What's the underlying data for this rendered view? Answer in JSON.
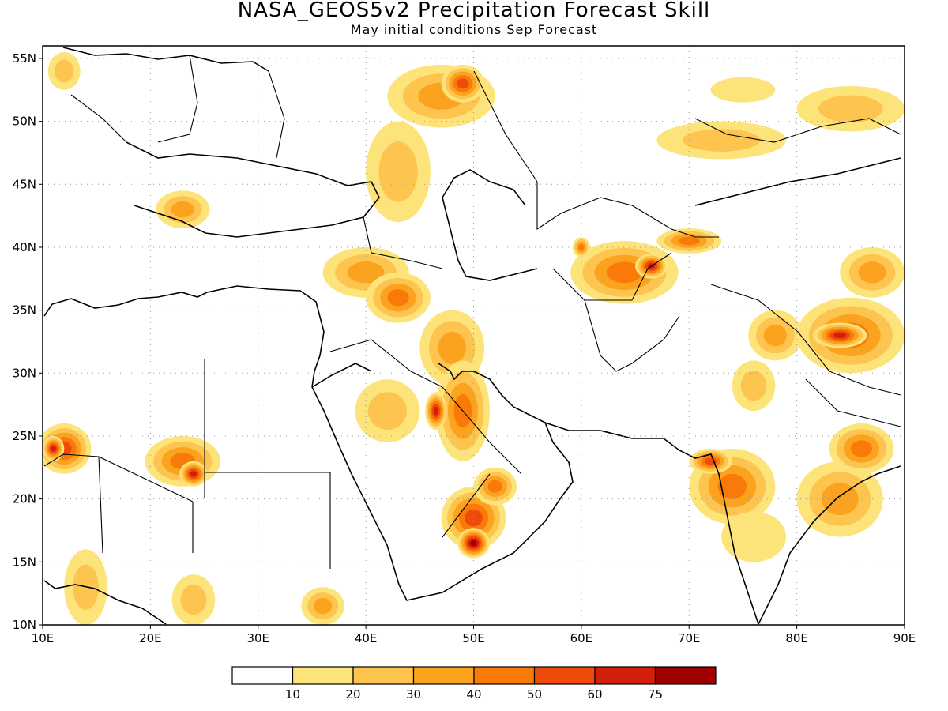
{
  "title": "NASA_GEOS5v2 Precipitation Forecast Skill",
  "subtitle": "May initial conditions  Sep Forecast",
  "map": {
    "lon_range": [
      10,
      90
    ],
    "lat_range": [
      10,
      56
    ],
    "lon_ticks": [
      "10E",
      "20E",
      "30E",
      "40E",
      "50E",
      "60E",
      "70E",
      "80E",
      "90E"
    ],
    "lat_ticks": [
      "55N",
      "50N",
      "45N",
      "40N",
      "35N",
      "30N",
      "25N",
      "20N",
      "15N",
      "10N"
    ],
    "grid": "dotted"
  },
  "colorbar": {
    "labels": [
      "10",
      "20",
      "30",
      "40",
      "50",
      "60",
      "75"
    ],
    "colors": [
      "#ffffff",
      "#fde47a",
      "#fdc450",
      "#fba21e",
      "#f97a08",
      "#ee4a0a",
      "#d21e0a",
      "#a00000"
    ]
  },
  "skill_regions": [
    {
      "lon": 47,
      "lat": 52,
      "rx": 5,
      "ry": 2.5,
      "level": 3
    },
    {
      "lon": 49,
      "lat": 53,
      "rx": 2,
      "ry": 1.5,
      "level": 5
    },
    {
      "lon": 43,
      "lat": 46,
      "rx": 3,
      "ry": 4,
      "level": 2
    },
    {
      "lon": 85,
      "lat": 51,
      "rx": 5,
      "ry": 1.8,
      "level": 2
    },
    {
      "lon": 73,
      "lat": 48.5,
      "rx": 6,
      "ry": 1.5,
      "level": 2
    },
    {
      "lon": 75,
      "lat": 52.5,
      "rx": 3,
      "ry": 1,
      "level": 1
    },
    {
      "lon": 64,
      "lat": 38,
      "rx": 5,
      "ry": 2.5,
      "level": 4
    },
    {
      "lon": 66.5,
      "lat": 38.5,
      "rx": 1.5,
      "ry": 1,
      "level": 6
    },
    {
      "lon": 70,
      "lat": 40.5,
      "rx": 3,
      "ry": 1,
      "level": 4
    },
    {
      "lon": 40,
      "lat": 38,
      "rx": 4,
      "ry": 2,
      "level": 3
    },
    {
      "lon": 43,
      "lat": 36,
      "rx": 3,
      "ry": 2,
      "level": 4
    },
    {
      "lon": 48,
      "lat": 32,
      "rx": 3,
      "ry": 3,
      "level": 3
    },
    {
      "lon": 49,
      "lat": 27,
      "rx": 2.5,
      "ry": 4,
      "level": 4
    },
    {
      "lon": 46.5,
      "lat": 27,
      "rx": 1,
      "ry": 1.5,
      "level": 6
    },
    {
      "lon": 42,
      "lat": 27,
      "rx": 3,
      "ry": 2.5,
      "level": 2
    },
    {
      "lon": 50,
      "lat": 18.5,
      "rx": 3,
      "ry": 2.5,
      "level": 5
    },
    {
      "lon": 50,
      "lat": 16.5,
      "rx": 1.5,
      "ry": 1.2,
      "level": 7
    },
    {
      "lon": 52,
      "lat": 21,
      "rx": 2,
      "ry": 1.5,
      "level": 4
    },
    {
      "lon": 12,
      "lat": 24,
      "rx": 2.5,
      "ry": 2,
      "level": 5
    },
    {
      "lon": 11,
      "lat": 24,
      "rx": 1,
      "ry": 1,
      "level": 6
    },
    {
      "lon": 23,
      "lat": 23,
      "rx": 3.5,
      "ry": 2,
      "level": 4
    },
    {
      "lon": 24,
      "lat": 22,
      "rx": 1.3,
      "ry": 1,
      "level": 6
    },
    {
      "lon": 74,
      "lat": 21,
      "rx": 4,
      "ry": 3,
      "level": 4
    },
    {
      "lon": 72,
      "lat": 23,
      "rx": 2,
      "ry": 1,
      "level": 5
    },
    {
      "lon": 76,
      "lat": 17,
      "rx": 3,
      "ry": 2,
      "level": 1
    },
    {
      "lon": 84,
      "lat": 20,
      "rx": 4,
      "ry": 3,
      "level": 3
    },
    {
      "lon": 86,
      "lat": 24,
      "rx": 3,
      "ry": 2,
      "level": 4
    },
    {
      "lon": 85,
      "lat": 33,
      "rx": 5,
      "ry": 3,
      "level": 4
    },
    {
      "lon": 84,
      "lat": 33,
      "rx": 2.5,
      "ry": 1,
      "level": 6
    },
    {
      "lon": 78,
      "lat": 33,
      "rx": 2.5,
      "ry": 2,
      "level": 3
    },
    {
      "lon": 76,
      "lat": 29,
      "rx": 2,
      "ry": 2,
      "level": 2
    },
    {
      "lon": 87,
      "lat": 38,
      "rx": 3,
      "ry": 2,
      "level": 3
    },
    {
      "lon": 14,
      "lat": 13,
      "rx": 2,
      "ry": 3,
      "level": 2
    },
    {
      "lon": 24,
      "lat": 12,
      "rx": 2,
      "ry": 2,
      "level": 2
    },
    {
      "lon": 36,
      "lat": 11.5,
      "rx": 2,
      "ry": 1.5,
      "level": 3
    },
    {
      "lon": 23,
      "lat": 43,
      "rx": 2.5,
      "ry": 1.5,
      "level": 3
    },
    {
      "lon": 12,
      "lat": 54,
      "rx": 1.5,
      "ry": 1.5,
      "level": 2
    },
    {
      "lon": 60,
      "lat": 40,
      "rx": 0.8,
      "ry": 0.8,
      "level": 4
    }
  ]
}
